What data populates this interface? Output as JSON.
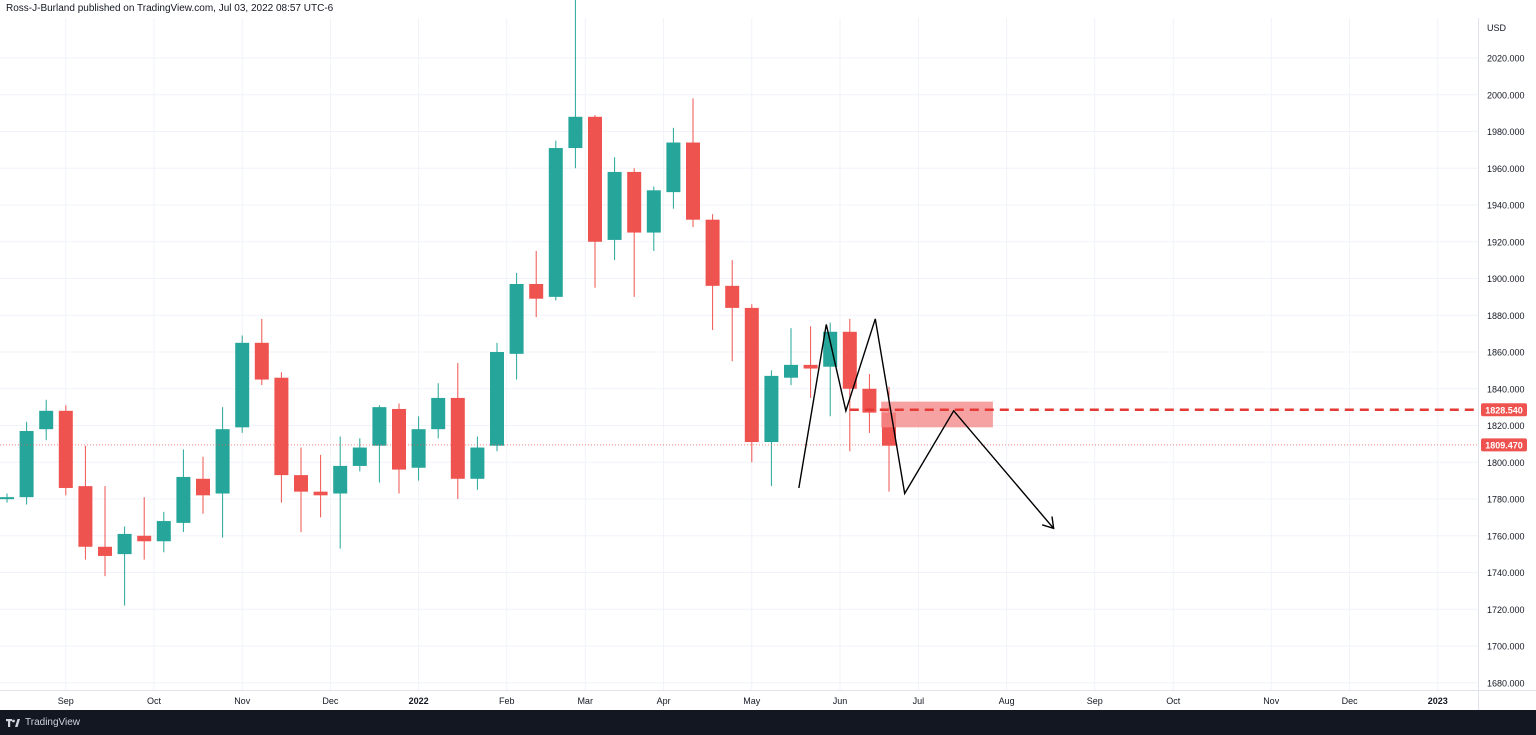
{
  "header": {
    "published_text": "Ross-J-Burland published on TradingView.com, Jul 03, 2022 08:57 UTC-6"
  },
  "footer": {
    "brand": "TradingView"
  },
  "colors": {
    "up": "#26a69a",
    "down": "#ef5350",
    "zone_fill": "#f48b8b",
    "level_line": "#e53935",
    "price_badge": "#ef5350",
    "grid": "#f0f3fa",
    "text": "#131722"
  },
  "chart_data": {
    "type": "candlestick",
    "timeframe": "weekly",
    "currency_label": "USD",
    "y_ticks": [
      1680,
      1700,
      1720,
      1740,
      1760,
      1780,
      1800,
      1820,
      1840,
      1860,
      1880,
      1900,
      1920,
      1940,
      1960,
      1980,
      2000,
      2020
    ],
    "ylim": [
      1672,
      2035
    ],
    "x_labels": [
      {
        "label": "Sep",
        "week": 3,
        "bold": false
      },
      {
        "label": "Oct",
        "week": 7.5,
        "bold": false
      },
      {
        "label": "Nov",
        "week": 12,
        "bold": false
      },
      {
        "label": "Dec",
        "week": 16.5,
        "bold": false
      },
      {
        "label": "2022",
        "week": 21,
        "bold": true
      },
      {
        "label": "Feb",
        "week": 25.5,
        "bold": false
      },
      {
        "label": "Mar",
        "week": 29.5,
        "bold": false
      },
      {
        "label": "Apr",
        "week": 33.5,
        "bold": false
      },
      {
        "label": "May",
        "week": 38,
        "bold": false
      },
      {
        "label": "Jun",
        "week": 42.5,
        "bold": false
      },
      {
        "label": "Jul",
        "week": 46.5,
        "bold": false
      },
      {
        "label": "Aug",
        "week": 51,
        "bold": false
      },
      {
        "label": "Sep",
        "week": 55.5,
        "bold": false
      },
      {
        "label": "Oct",
        "week": 59.5,
        "bold": false
      },
      {
        "label": "Nov",
        "week": 64.5,
        "bold": false
      },
      {
        "label": "Dec",
        "week": 68.5,
        "bold": false
      },
      {
        "label": "2023",
        "week": 73,
        "bold": true
      }
    ],
    "candles": [
      {
        "o": 1780,
        "h": 1783,
        "l": 1778,
        "c": 1781
      },
      {
        "o": 1781,
        "h": 1822,
        "l": 1777,
        "c": 1817
      },
      {
        "o": 1818,
        "h": 1834,
        "l": 1812,
        "c": 1828
      },
      {
        "o": 1828,
        "h": 1831,
        "l": 1782,
        "c": 1786
      },
      {
        "o": 1787,
        "h": 1809,
        "l": 1747,
        "c": 1754
      },
      {
        "o": 1754,
        "h": 1787,
        "l": 1738,
        "c": 1749
      },
      {
        "o": 1750,
        "h": 1765,
        "l": 1722,
        "c": 1761
      },
      {
        "o": 1760,
        "h": 1781,
        "l": 1747,
        "c": 1757
      },
      {
        "o": 1757,
        "h": 1773,
        "l": 1751,
        "c": 1768
      },
      {
        "o": 1767,
        "h": 1807,
        "l": 1762,
        "c": 1792
      },
      {
        "o": 1791,
        "h": 1803,
        "l": 1772,
        "c": 1782
      },
      {
        "o": 1783,
        "h": 1830,
        "l": 1759,
        "c": 1818
      },
      {
        "o": 1819,
        "h": 1869,
        "l": 1816,
        "c": 1865
      },
      {
        "o": 1865,
        "h": 1878,
        "l": 1842,
        "c": 1845
      },
      {
        "o": 1846,
        "h": 1849,
        "l": 1778,
        "c": 1793
      },
      {
        "o": 1793,
        "h": 1808,
        "l": 1762,
        "c": 1784
      },
      {
        "o": 1784,
        "h": 1804,
        "l": 1770,
        "c": 1782
      },
      {
        "o": 1783,
        "h": 1814,
        "l": 1753,
        "c": 1798
      },
      {
        "o": 1798,
        "h": 1813,
        "l": 1795,
        "c": 1808
      },
      {
        "o": 1809,
        "h": 1831,
        "l": 1789,
        "c": 1830
      },
      {
        "o": 1829,
        "h": 1832,
        "l": 1783,
        "c": 1796
      },
      {
        "o": 1797,
        "h": 1825,
        "l": 1790,
        "c": 1818
      },
      {
        "o": 1818,
        "h": 1843,
        "l": 1813,
        "c": 1835
      },
      {
        "o": 1835,
        "h": 1854,
        "l": 1780,
        "c": 1791
      },
      {
        "o": 1791,
        "h": 1814,
        "l": 1785,
        "c": 1808
      },
      {
        "o": 1809,
        "h": 1865,
        "l": 1806,
        "c": 1860
      },
      {
        "o": 1859,
        "h": 1903,
        "l": 1845,
        "c": 1897
      },
      {
        "o": 1897,
        "h": 1915,
        "l": 1879,
        "c": 1889
      },
      {
        "o": 1890,
        "h": 1975,
        "l": 1888,
        "c": 1971
      },
      {
        "o": 1971,
        "h": 2070,
        "l": 1960,
        "c": 1988
      },
      {
        "o": 1988,
        "h": 1989,
        "l": 1895,
        "c": 1920
      },
      {
        "o": 1921,
        "h": 1966,
        "l": 1910,
        "c": 1958
      },
      {
        "o": 1958,
        "h": 1960,
        "l": 1890,
        "c": 1925
      },
      {
        "o": 1925,
        "h": 1950,
        "l": 1915,
        "c": 1948
      },
      {
        "o": 1947,
        "h": 1982,
        "l": 1938,
        "c": 1974
      },
      {
        "o": 1974,
        "h": 1998,
        "l": 1928,
        "c": 1932
      },
      {
        "o": 1932,
        "h": 1935,
        "l": 1872,
        "c": 1896
      },
      {
        "o": 1896,
        "h": 1910,
        "l": 1855,
        "c": 1884
      },
      {
        "o": 1884,
        "h": 1886,
        "l": 1800,
        "c": 1811
      },
      {
        "o": 1811,
        "h": 1850,
        "l": 1787,
        "c": 1847
      },
      {
        "o": 1846,
        "h": 1873,
        "l": 1842,
        "c": 1853
      },
      {
        "o": 1853,
        "h": 1874,
        "l": 1835,
        "c": 1851
      },
      {
        "o": 1852,
        "h": 1876,
        "l": 1825,
        "c": 1871
      },
      {
        "o": 1871,
        "h": 1878,
        "l": 1806,
        "c": 1840
      },
      {
        "o": 1840,
        "h": 1848,
        "l": 1816,
        "c": 1827
      },
      {
        "o": 1827,
        "h": 1841,
        "l": 1784,
        "c": 1809
      }
    ],
    "horizontal_line": {
      "price": 1828.54,
      "label": "1828.540",
      "from_week": 43
    },
    "zone": {
      "from_week": 44.6,
      "to_week": 50.3,
      "top": 1833,
      "bottom": 1819
    },
    "current_price": {
      "price": 1809.47,
      "label": "1809.470"
    },
    "pattern_path": [
      {
        "week": 40.4,
        "price": 1786
      },
      {
        "week": 41.8,
        "price": 1875
      },
      {
        "week": 42.8,
        "price": 1828
      },
      {
        "week": 44.3,
        "price": 1878
      },
      {
        "week": 45.8,
        "price": 1783
      },
      {
        "week": 48.3,
        "price": 1828
      },
      {
        "week": 53.4,
        "price": 1764
      }
    ]
  }
}
